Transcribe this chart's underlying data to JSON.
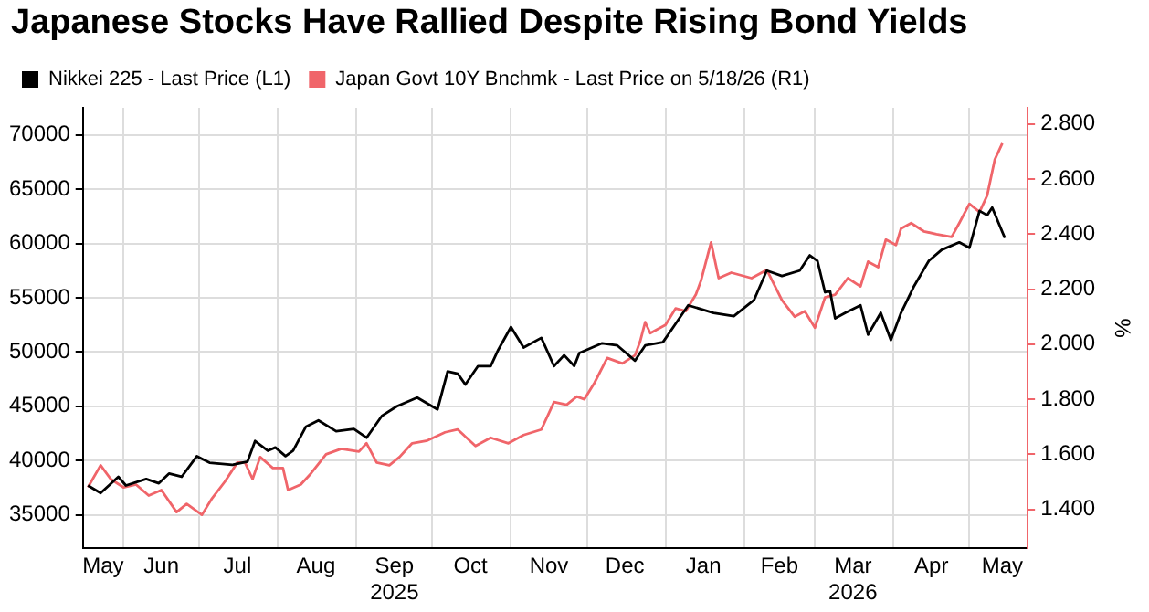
{
  "chart_data": {
    "type": "line",
    "title": "Japanese Stocks Have Rallied Despite Rising Bond Yields",
    "y2label": "%",
    "legend": "top left",
    "grid": true,
    "marker": "none",
    "line_style": "solid",
    "xlim": [
      "2025-05-16",
      "2026-05-24"
    ],
    "xticks": [
      {
        "value": "2025-05-24",
        "label": "May"
      },
      {
        "value": "2025-06-01",
        "label": null
      },
      {
        "value": "2025-06-16",
        "label": "Jun"
      },
      {
        "value": "2025-07-01",
        "label": null
      },
      {
        "value": "2025-07-16",
        "label": "Jul"
      },
      {
        "value": "2025-08-01",
        "label": null
      },
      {
        "value": "2025-08-16",
        "label": "Aug"
      },
      {
        "value": "2025-09-01",
        "label": null
      },
      {
        "value": "2025-09-16",
        "label": "Sep\n2025"
      },
      {
        "value": "2025-10-01",
        "label": null
      },
      {
        "value": "2025-10-16",
        "label": "Oct"
      },
      {
        "value": "2025-11-01",
        "label": null
      },
      {
        "value": "2025-11-16",
        "label": "Nov"
      },
      {
        "value": "2025-12-01",
        "label": null
      },
      {
        "value": "2025-12-16",
        "label": "Dec"
      },
      {
        "value": "2026-01-01",
        "label": null
      },
      {
        "value": "2026-01-16",
        "label": "Jan"
      },
      {
        "value": "2026-02-01",
        "label": null
      },
      {
        "value": "2026-02-15",
        "label": "Feb"
      },
      {
        "value": "2026-03-01",
        "label": null
      },
      {
        "value": "2026-03-16",
        "label": "Mar\n2026"
      },
      {
        "value": "2026-04-01",
        "label": null
      },
      {
        "value": "2026-04-16",
        "label": "Apr"
      },
      {
        "value": "2026-05-01",
        "label": null
      },
      {
        "value": "2026-05-14",
        "label": "May"
      }
    ],
    "ylim": [
      31900,
      72500
    ],
    "yticks": [
      35000,
      40000,
      45000,
      50000,
      55000,
      60000,
      65000,
      70000
    ],
    "y2lim": [
      1.258,
      2.859
    ],
    "y2ticks": [
      {
        "value": 1.4,
        "label": "1.400"
      },
      {
        "value": 1.6,
        "label": "1.600"
      },
      {
        "value": 1.8,
        "label": "1.800"
      },
      {
        "value": 2.0,
        "label": "2.000"
      },
      {
        "value": 2.2,
        "label": "2.200"
      },
      {
        "value": 2.4,
        "label": "2.400"
      },
      {
        "value": 2.6,
        "label": "2.600"
      },
      {
        "value": 2.8,
        "label": "2.800"
      }
    ],
    "series": [
      {
        "name": "Nikkei 225 - Last Price (L1)",
        "color": "#000000",
        "x": [
          "2025-05-18",
          "2025-05-23",
          "2025-05-30",
          "2025-06-02",
          "2025-06-10",
          "2025-06-15",
          "2025-06-19",
          "2025-06-24",
          "2025-06-30",
          "2025-07-05",
          "2025-07-14",
          "2025-07-20",
          "2025-07-23",
          "2025-07-28",
          "2025-07-31",
          "2025-08-04",
          "2025-08-07",
          "2025-08-12",
          "2025-08-17",
          "2025-08-24",
          "2025-08-31",
          "2025-09-05",
          "2025-09-11",
          "2025-09-17",
          "2025-09-25",
          "2025-10-03",
          "2025-10-07",
          "2025-10-11",
          "2025-10-14",
          "2025-10-19",
          "2025-10-24",
          "2025-10-27",
          "2025-11-01",
          "2025-11-06",
          "2025-11-13",
          "2025-11-18",
          "2025-11-22",
          "2025-11-26",
          "2025-11-28",
          "2025-12-07",
          "2025-12-13",
          "2025-12-20",
          "2025-12-24",
          "2025-12-31",
          "2026-01-05",
          "2026-01-10",
          "2026-01-20",
          "2026-01-28",
          "2026-02-05",
          "2026-02-10",
          "2026-02-16",
          "2026-02-23",
          "2026-02-27",
          "2026-03-02",
          "2026-03-05",
          "2026-03-07",
          "2026-03-09",
          "2026-03-13",
          "2026-03-19",
          "2026-03-22",
          "2026-03-27",
          "2026-03-31",
          "2026-04-04",
          "2026-04-09",
          "2026-04-15",
          "2026-04-20",
          "2026-04-27",
          "2026-05-01",
          "2026-05-05",
          "2026-05-08",
          "2026-05-10",
          "2026-05-15"
        ],
        "values": [
          37700,
          37000,
          38500,
          37700,
          38300,
          37900,
          38800,
          38500,
          40400,
          39800,
          39600,
          39900,
          41800,
          40900,
          41200,
          40400,
          40900,
          43100,
          43700,
          42700,
          42900,
          42100,
          44100,
          45000,
          45800,
          44700,
          48200,
          48000,
          47000,
          48700,
          48700,
          50200,
          52300,
          50400,
          51300,
          48700,
          49700,
          48700,
          49900,
          50800,
          50600,
          49200,
          50600,
          50900,
          52600,
          54300,
          53600,
          53300,
          54800,
          57500,
          57000,
          57500,
          58900,
          58400,
          55500,
          55600,
          53100,
          53600,
          54300,
          51600,
          53600,
          51100,
          53600,
          56000,
          58400,
          59400,
          60100,
          59600,
          63000,
          62600,
          63300,
          60500
        ]
      },
      {
        "name": "Japan Govt 10Y Bnchmk - Last Price on 5/18/26 (R1)",
        "color": "#f0656a",
        "axis": "y2",
        "x": [
          "2025-05-18",
          "2025-05-23",
          "2025-05-27",
          "2025-06-01",
          "2025-06-06",
          "2025-06-11",
          "2025-06-16",
          "2025-06-22",
          "2025-06-26",
          "2025-07-02",
          "2025-07-06",
          "2025-07-11",
          "2025-07-16",
          "2025-07-19",
          "2025-07-22",
          "2025-07-25",
          "2025-07-30",
          "2025-08-03",
          "2025-08-05",
          "2025-08-10",
          "2025-08-14",
          "2025-08-20",
          "2025-08-26",
          "2025-09-02",
          "2025-09-05",
          "2025-09-09",
          "2025-09-14",
          "2025-09-18",
          "2025-09-23",
          "2025-09-29",
          "2025-10-06",
          "2025-10-11",
          "2025-10-18",
          "2025-10-24",
          "2025-10-31",
          "2025-11-06",
          "2025-11-13",
          "2025-11-18",
          "2025-11-23",
          "2025-11-27",
          "2025-11-30",
          "2025-12-04",
          "2025-12-09",
          "2025-12-15",
          "2025-12-20",
          "2025-12-22",
          "2025-12-24",
          "2025-12-26",
          "2026-01-01",
          "2026-01-05",
          "2026-01-09",
          "2026-01-13",
          "2026-01-15",
          "2026-01-19",
          "2026-01-22",
          "2026-01-27",
          "2026-02-04",
          "2026-02-10",
          "2026-02-16",
          "2026-02-21",
          "2026-02-25",
          "2026-03-01",
          "2026-03-05",
          "2026-03-09",
          "2026-03-14",
          "2026-03-19",
          "2026-03-22",
          "2026-03-26",
          "2026-03-29",
          "2026-04-02",
          "2026-04-04",
          "2026-04-08",
          "2026-04-13",
          "2026-04-18",
          "2026-04-24",
          "2026-04-27",
          "2026-05-01",
          "2026-05-05",
          "2026-05-08",
          "2026-05-11",
          "2026-05-14"
        ],
        "values": [
          1.48,
          1.56,
          1.51,
          1.48,
          1.49,
          1.45,
          1.47,
          1.39,
          1.42,
          1.38,
          1.44,
          1.5,
          1.57,
          1.57,
          1.51,
          1.59,
          1.55,
          1.55,
          1.47,
          1.49,
          1.53,
          1.6,
          1.62,
          1.61,
          1.64,
          1.57,
          1.56,
          1.59,
          1.64,
          1.65,
          1.68,
          1.69,
          1.63,
          1.66,
          1.64,
          1.67,
          1.69,
          1.79,
          1.78,
          1.81,
          1.8,
          1.86,
          1.95,
          1.93,
          1.96,
          2.01,
          2.08,
          2.04,
          2.07,
          2.13,
          2.12,
          2.18,
          2.23,
          2.37,
          2.24,
          2.26,
          2.24,
          2.27,
          2.16,
          2.1,
          2.12,
          2.06,
          2.17,
          2.18,
          2.24,
          2.21,
          2.3,
          2.28,
          2.38,
          2.36,
          2.42,
          2.44,
          2.41,
          2.4,
          2.39,
          2.44,
          2.51,
          2.48,
          2.54,
          2.67,
          2.73
        ]
      }
    ]
  }
}
